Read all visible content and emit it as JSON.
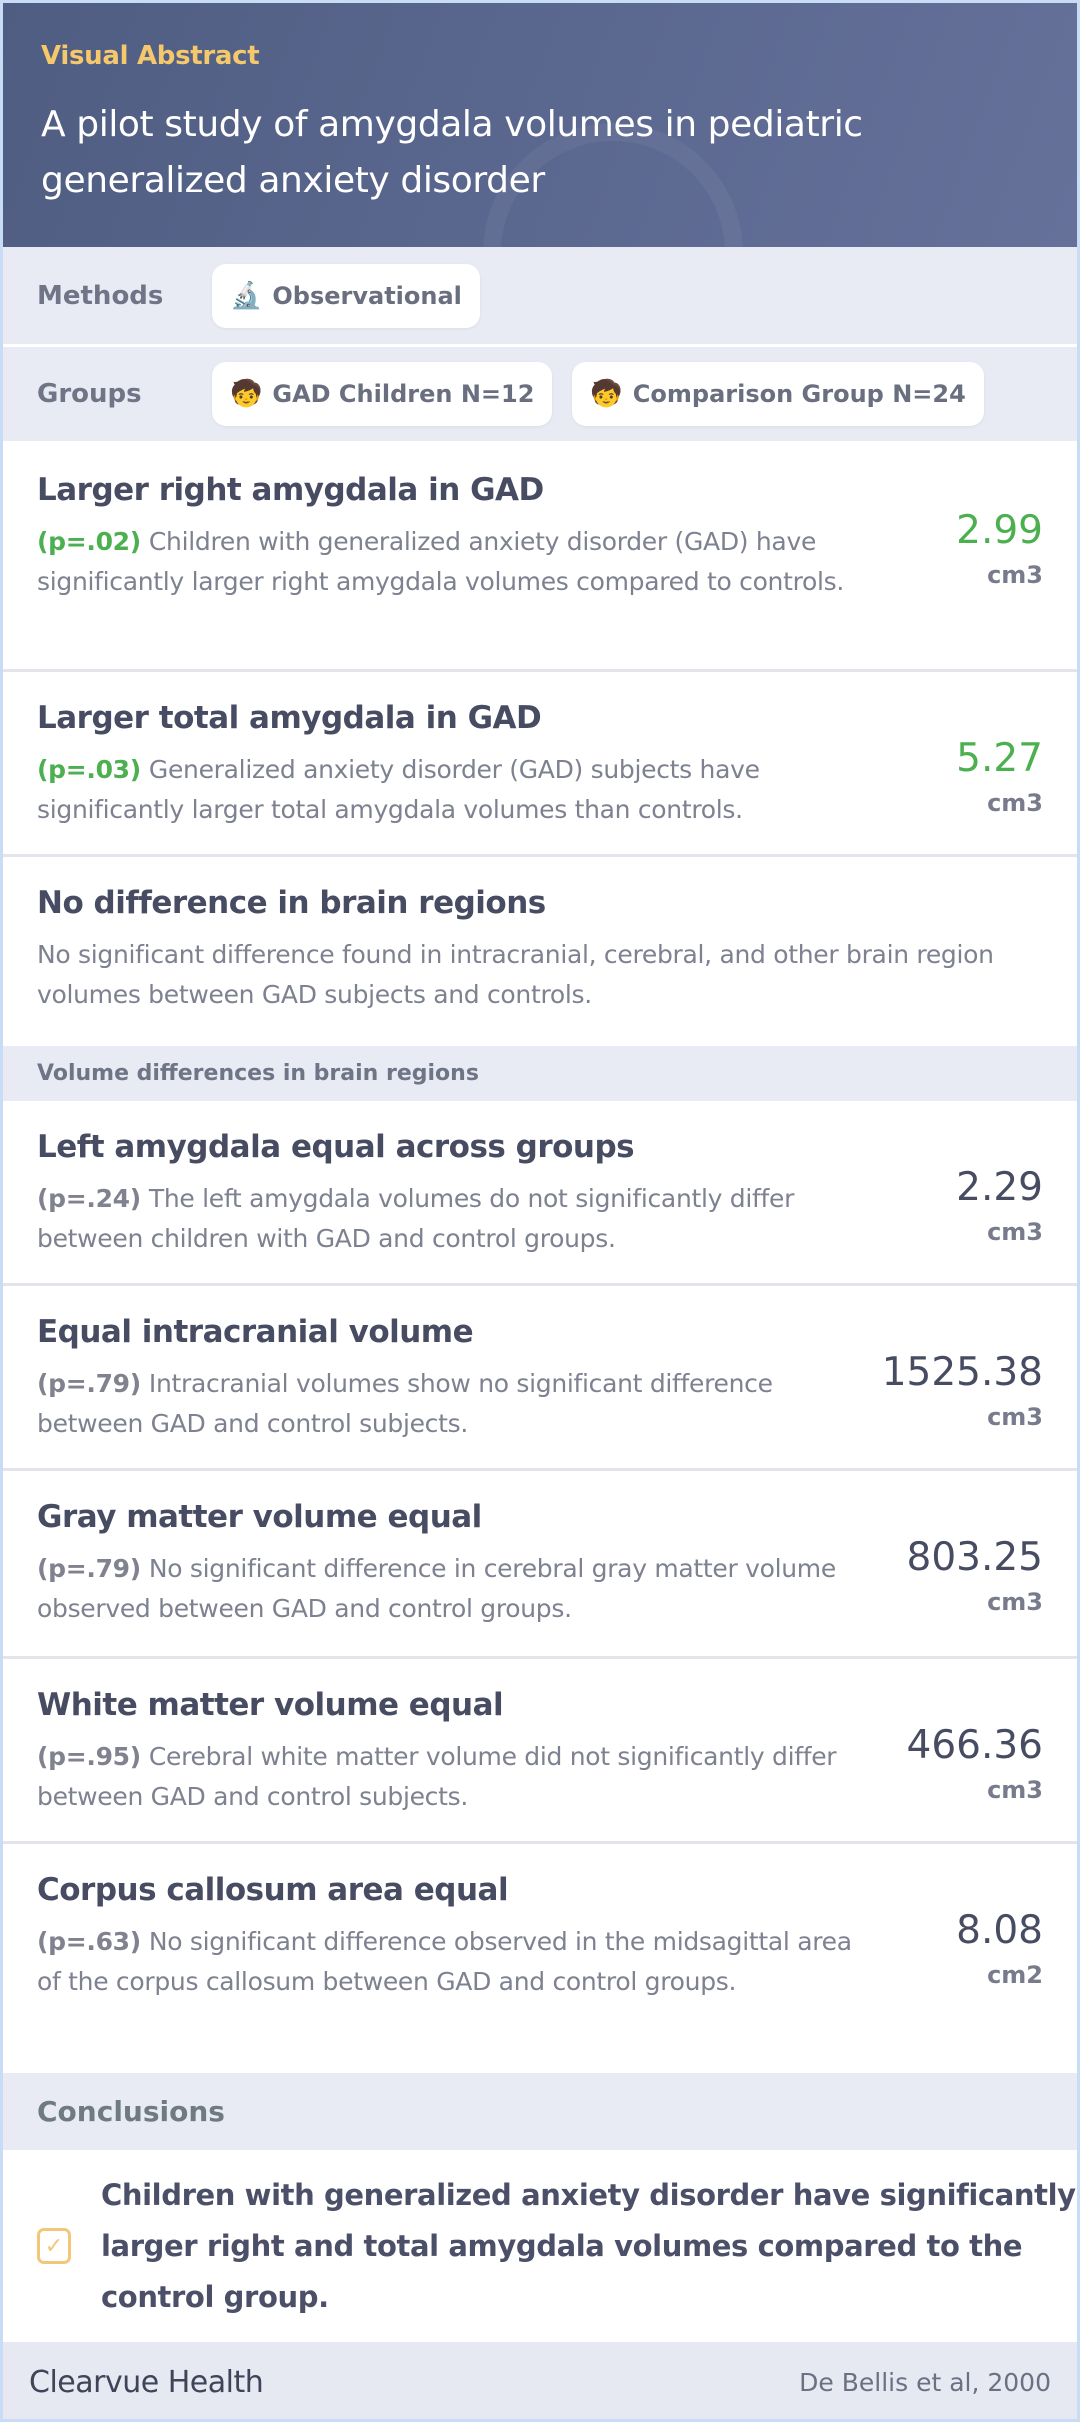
{
  "header": {
    "kicker": "Visual Abstract",
    "title": "A pilot study of amygdala volumes in pediatric generalized anxiety disorder"
  },
  "methods": {
    "label": "Methods",
    "chips": [
      {
        "icon": "microscope-icon",
        "glyph": "🔬",
        "text": "Observational"
      }
    ]
  },
  "groups": {
    "label": "Groups",
    "chips": [
      {
        "icon": "child-icon",
        "glyph": "🧒",
        "text": "GAD Children N=12"
      },
      {
        "icon": "child-icon",
        "glyph": "🧒",
        "text": "Comparison Group N=24"
      }
    ]
  },
  "findings": [
    {
      "title": "Larger right amygdala in GAD",
      "p": "(p=.02)",
      "body": "Children with generalized anxiety disorder (GAD) have significantly larger right amygdala volumes compared to controls.",
      "value": "2.99",
      "unit": "cm3",
      "color": "#4caf50"
    },
    {
      "title": "Larger total amygdala in GAD",
      "p": "(p=.03)",
      "body": "Generalized anxiety disorder (GAD) subjects have significantly larger total amygdala volumes than controls.",
      "value": "5.27",
      "unit": "cm3",
      "color": "#4caf50"
    },
    {
      "title": "No difference in brain regions",
      "body": "No significant difference found in intracranial, cerebral, and other brain region volumes between GAD subjects and controls."
    }
  ],
  "section": "Volume differences in brain regions",
  "regions": [
    {
      "title": "Left amygdala equal across groups",
      "p": "(p=.24)",
      "body": "The left amygdala volumes do not significantly differ between children with GAD and control groups.",
      "value": "2.29",
      "unit": "cm3"
    },
    {
      "title": "Equal intracranial volume",
      "p": "(p=.79)",
      "body": "Intracranial volumes show no significant difference between GAD and control subjects.",
      "value": "1525.38",
      "unit": "cm3"
    },
    {
      "title": "Gray matter volume equal",
      "p": "(p=.79)",
      "body": "No significant difference in cerebral gray matter volume observed between GAD and control groups.",
      "value": "803.25",
      "unit": "cm3"
    },
    {
      "title": "White matter volume equal",
      "p": "(p=.95)",
      "body": "Cerebral white matter volume did not significantly differ between GAD and control subjects.",
      "value": "466.36",
      "unit": "cm3"
    },
    {
      "title": "Corpus callosum area equal",
      "p": "(p=.63)",
      "body": "No significant difference observed in the midsagittal area of the corpus callosum between GAD and control groups.",
      "value": "8.08",
      "unit": "cm2"
    }
  ],
  "conclusions": {
    "label": "Conclusions",
    "text": "Children with generalized anxiety disorder have significantly larger right and total amygdala volumes compared to the control group."
  },
  "footer": {
    "brand": "Clearvue Health",
    "citation": "De Bellis et al, 2000"
  }
}
